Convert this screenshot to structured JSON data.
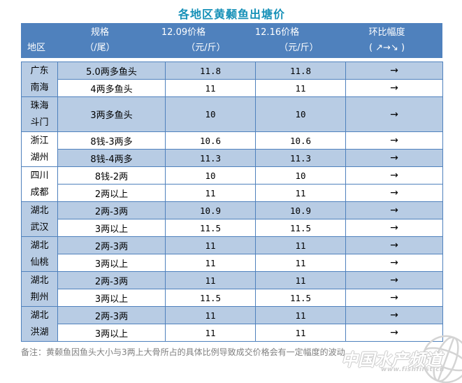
{
  "title": "各地区黄颡鱼出塘价",
  "colors": {
    "header_bg": "#4F81BD",
    "header_text": "#FFFFFF",
    "row_alt_bg": "#B8CCE4",
    "row_bg": "#FFFFFF",
    "border": "#4F81BD",
    "title_text": "#1791B8",
    "note_text": "#808080",
    "watermark": "#CCCCCC",
    "cell_text": "#000000"
  },
  "header": {
    "region_label": "地区",
    "cols": [
      {
        "line1": "规格",
        "line2": "（/尾）"
      },
      {
        "line1": "12.09价格",
        "line2": "（元/斤）"
      },
      {
        "line1": "12.16价格",
        "line2": "（元/斤）"
      },
      {
        "line1": "环比幅度",
        "line2": "( ↗→↘ )"
      }
    ]
  },
  "groups": [
    {
      "region": [
        "广东",
        "南海"
      ],
      "region_bg": "blue",
      "rows": [
        {
          "spec": "5.0两多鱼头",
          "p1": "11.8",
          "p2": "11.8",
          "trend": "→",
          "bg": "blue"
        },
        {
          "spec": "4两多鱼头",
          "p1": "11",
          "p2": "11",
          "trend": "→",
          "bg": "white"
        }
      ]
    },
    {
      "region": [
        "珠海",
        "斗门"
      ],
      "region_bg": "blue",
      "rows": [
        {
          "spec": "3两多鱼头",
          "p1": "10",
          "p2": "10",
          "trend": "→",
          "bg": "blue"
        }
      ]
    },
    {
      "region": [
        "浙江",
        "湖州"
      ],
      "region_bg": "white",
      "rows": [
        {
          "spec": "8钱-3两多",
          "p1": "10.6",
          "p2": "10.6",
          "trend": "→",
          "bg": "white"
        },
        {
          "spec": "8钱-4两多",
          "p1": "11.3",
          "p2": "11.3",
          "trend": "→",
          "bg": "blue"
        }
      ]
    },
    {
      "region": [
        "四川",
        "成都"
      ],
      "region_bg": "white",
      "rows": [
        {
          "spec": "8钱-2两",
          "p1": "10",
          "p2": "10",
          "trend": "→",
          "bg": "white"
        },
        {
          "spec": "2两以上",
          "p1": "11",
          "p2": "11",
          "trend": "→",
          "bg": "white"
        }
      ]
    },
    {
      "region": [
        "湖北",
        "武汉"
      ],
      "region_bg": "blue",
      "rows": [
        {
          "spec": "2两-3两",
          "p1": "10.9",
          "p2": "10.9",
          "trend": "→",
          "bg": "blue"
        },
        {
          "spec": "3两以上",
          "p1": "11.5",
          "p2": "11.5",
          "trend": "→",
          "bg": "white"
        }
      ]
    },
    {
      "region": [
        "湖北",
        "仙桃"
      ],
      "region_bg": "blue",
      "rows": [
        {
          "spec": "2两-3两",
          "p1": "11",
          "p2": "11",
          "trend": "→",
          "bg": "blue"
        },
        {
          "spec": "3两以上",
          "p1": "11",
          "p2": "11",
          "trend": "→",
          "bg": "white"
        }
      ]
    },
    {
      "region": [
        "湖北",
        "荆州"
      ],
      "region_bg": "blue",
      "rows": [
        {
          "spec": "2两-3两",
          "p1": "11",
          "p2": "11",
          "trend": "→",
          "bg": "blue"
        },
        {
          "spec": "3两以上",
          "p1": "11.5",
          "p2": "11.5",
          "trend": "→",
          "bg": "white"
        }
      ]
    },
    {
      "region": [
        "湖北",
        "洪湖"
      ],
      "region_bg": "blue",
      "rows": [
        {
          "spec": "2两-3两",
          "p1": "11",
          "p2": "11",
          "trend": "→",
          "bg": "blue"
        },
        {
          "spec": "3两以上",
          "p1": "11",
          "p2": "11",
          "trend": "→",
          "bg": "white"
        }
      ]
    }
  ],
  "note": "备注：黄颡鱼因鱼头大小与3两上大骨所占的具体比例导致成交价格会有一定幅度的波动",
  "watermark": {
    "site_name": "中国水产频道",
    "site_url": "www.fishfirst.cn"
  },
  "chart_data": {
    "type": "table",
    "title": "各地区黄颡鱼出塘价",
    "columns": [
      "地区",
      "规格（/尾）",
      "12.09价格（元/斤）",
      "12.16价格（元/斤）",
      "环比幅度（↗→↘）"
    ],
    "rows": [
      [
        "广东南海",
        "5.0两多鱼头",
        11.8,
        11.8,
        "→"
      ],
      [
        "广东南海",
        "4两多鱼头",
        11,
        11,
        "→"
      ],
      [
        "珠海斗门",
        "3两多鱼头",
        10,
        10,
        "→"
      ],
      [
        "浙江湖州",
        "8钱-3两多",
        10.6,
        10.6,
        "→"
      ],
      [
        "浙江湖州",
        "8钱-4两多",
        11.3,
        11.3,
        "→"
      ],
      [
        "四川成都",
        "8钱-2两",
        10,
        10,
        "→"
      ],
      [
        "四川成都",
        "2两以上",
        11,
        11,
        "→"
      ],
      [
        "湖北武汉",
        "2两-3两",
        10.9,
        10.9,
        "→"
      ],
      [
        "湖北武汉",
        "3两以上",
        11.5,
        11.5,
        "→"
      ],
      [
        "湖北仙桃",
        "2两-3两",
        11,
        11,
        "→"
      ],
      [
        "湖北仙桃",
        "3两以上",
        11,
        11,
        "→"
      ],
      [
        "湖北荆州",
        "2两-3两",
        11,
        11,
        "→"
      ],
      [
        "湖北荆州",
        "3两以上",
        11.5,
        11.5,
        "→"
      ],
      [
        "湖北洪湖",
        "2两-3两",
        11,
        11,
        "→"
      ],
      [
        "湖北洪湖",
        "3两以上",
        11,
        11,
        "→"
      ]
    ],
    "note": "黄颡鱼因鱼头大小与3两上大骨所占的具体比例导致成交价格会有一定幅度的波动"
  }
}
